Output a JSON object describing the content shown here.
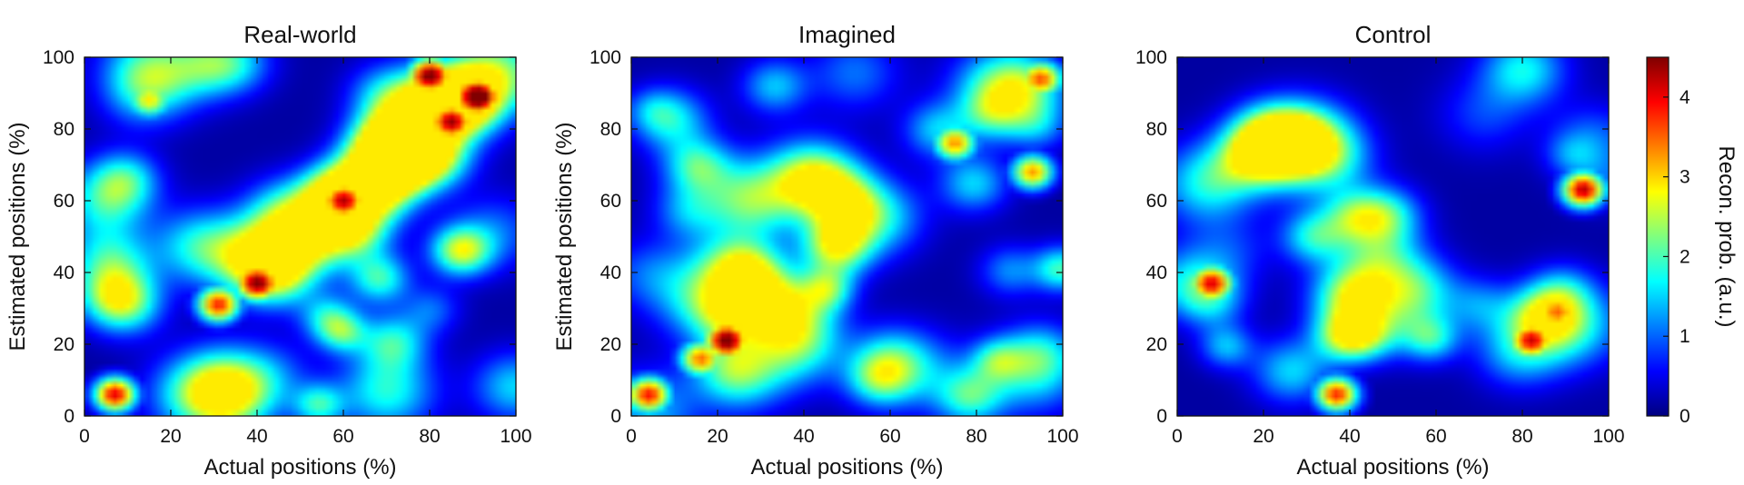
{
  "chart_data": [
    {
      "type": "heatmap",
      "title": "Real-world",
      "xlabel": "Actual positions (%)",
      "ylabel": "Estimated positions (%)",
      "xlim": [
        0,
        100
      ],
      "ylim": [
        0,
        100
      ],
      "xticks": [
        "0",
        "20",
        "40",
        "60",
        "80",
        "100"
      ],
      "yticks": [
        "0",
        "20",
        "40",
        "60",
        "80",
        "100"
      ],
      "hotspots": [
        {
          "x": 7,
          "y": 6,
          "value": 4.0
        },
        {
          "x": 31,
          "y": 31,
          "value": 3.7
        },
        {
          "x": 40,
          "y": 37,
          "value": 3.9
        },
        {
          "x": 60,
          "y": 60,
          "value": 3.6
        },
        {
          "x": 80,
          "y": 95,
          "value": 4.0
        },
        {
          "x": 91,
          "y": 89,
          "value": 4.5
        },
        {
          "x": 85,
          "y": 82,
          "value": 3.7
        },
        {
          "x": 15,
          "y": 88,
          "value": 2.4
        }
      ]
    },
    {
      "type": "heatmap",
      "title": "Imagined",
      "xlabel": "Actual positions (%)",
      "ylabel": "Estimated positions (%)",
      "xlim": [
        0,
        100
      ],
      "ylim": [
        0,
        100
      ],
      "xticks": [
        "0",
        "20",
        "40",
        "60",
        "80",
        "100"
      ],
      "yticks": [
        "0",
        "20",
        "40",
        "60",
        "80",
        "100"
      ],
      "hotspots": [
        {
          "x": 4,
          "y": 6,
          "value": 3.6
        },
        {
          "x": 22,
          "y": 21,
          "value": 4.1
        },
        {
          "x": 16,
          "y": 16,
          "value": 3.1
        },
        {
          "x": 75,
          "y": 76,
          "value": 3.0
        },
        {
          "x": 93,
          "y": 68,
          "value": 3.2
        },
        {
          "x": 95,
          "y": 94,
          "value": 3.1
        }
      ]
    },
    {
      "type": "heatmap",
      "title": "Control",
      "xlabel": "Actual positions (%)",
      "ylabel": "",
      "xlim": [
        0,
        100
      ],
      "ylim": [
        0,
        100
      ],
      "xticks": [
        "0",
        "20",
        "40",
        "60",
        "80",
        "100"
      ],
      "yticks": [
        "0",
        "20",
        "40",
        "60",
        "80",
        "100"
      ],
      "hotspots": [
        {
          "x": 94,
          "y": 63,
          "value": 4.1
        },
        {
          "x": 8,
          "y": 37,
          "value": 3.6
        },
        {
          "x": 37,
          "y": 6,
          "value": 3.7
        },
        {
          "x": 82,
          "y": 21,
          "value": 3.5
        },
        {
          "x": 88,
          "y": 29,
          "value": 2.8
        }
      ]
    }
  ],
  "colorbar": {
    "label": "Recon. prob. (a.u.)",
    "range": [
      0,
      4.5
    ],
    "ticks": [
      "0",
      "1",
      "2",
      "3",
      "4"
    ],
    "colormap": "jet",
    "colors": [
      "#00007f",
      "#0000ff",
      "#007fff",
      "#00ffff",
      "#7fff7f",
      "#ffff00",
      "#ff7f00",
      "#ff0000",
      "#7f0000"
    ]
  }
}
